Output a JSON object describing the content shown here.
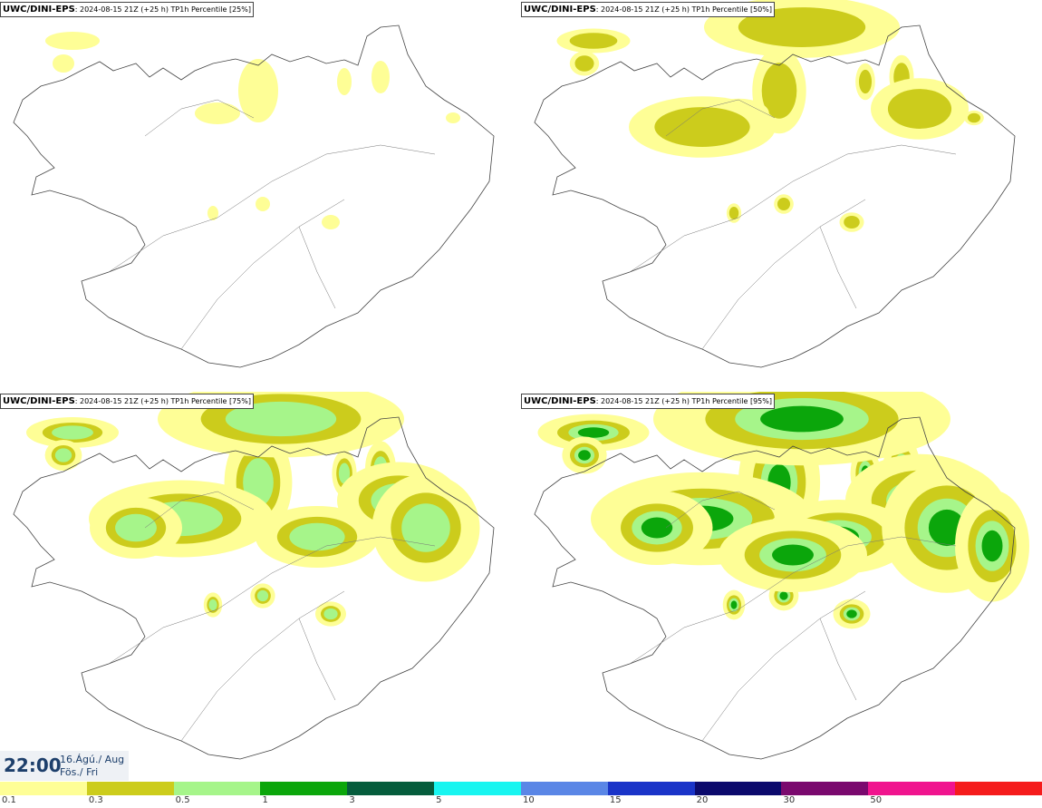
{
  "panels": [
    {
      "model": "UWC/DINI-EPS",
      "run": ": 2024-08-15 21Z (+25 h) ",
      "param": "TP1h Percentile [25%]"
    },
    {
      "model": "UWC/DINI-EPS",
      "run": ": 2024-08-15 21Z (+25 h) ",
      "param": "TP1h Percentile [50%]"
    },
    {
      "model": "UWC/DINI-EPS",
      "run": ": 2024-08-15 21Z (+25 h) ",
      "param": "TP1h Percentile [75%]"
    },
    {
      "model": "UWC/DINI-EPS",
      "run": ": 2024-08-15 21Z (+25 h) ",
      "param": "TP1h Percentile [95%]"
    }
  ],
  "valid_time": {
    "time": "22:00",
    "date_line1": "16.Ágú./ Aug",
    "date_line2": "Fös./ Fri"
  },
  "legend": {
    "labels": [
      "0.1",
      "0.3",
      "0.5",
      "1",
      "3",
      "5",
      "10",
      "15",
      "20",
      "30",
      "50"
    ],
    "colors": [
      "#fefe96",
      "#cccc1c",
      "#a6f58a",
      "#0ba60b",
      "#055c3c",
      "#18f5f0",
      "#5a86e6",
      "#1a34c8",
      "#0c0a6c",
      "#7a096e",
      "#f0148e",
      "#f51c1c"
    ]
  }
}
